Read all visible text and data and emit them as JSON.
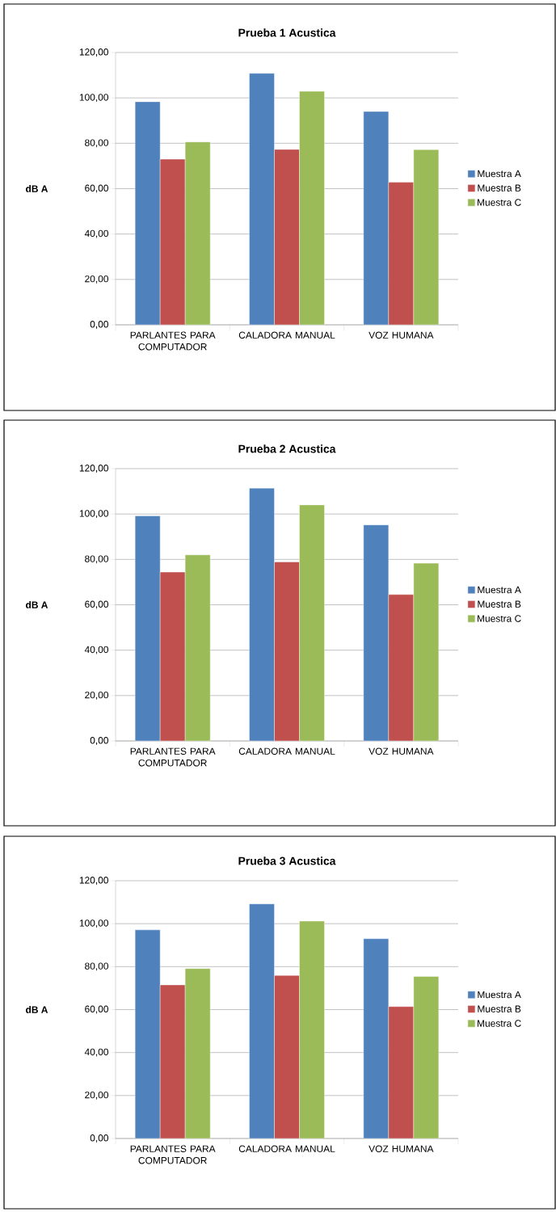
{
  "chart_data": [
    {
      "type": "bar",
      "title": "Prueba 1 Acustica",
      "ylabel": "dB A",
      "categories": [
        "PARLANTES PARA COMPUTADOR",
        "CALADORA MANUAL",
        "VOZ HUMANA"
      ],
      "series": [
        {
          "name": "Muestra A",
          "color": "#4f81bd",
          "values": [
            98.3,
            110.8,
            94.0
          ]
        },
        {
          "name": "Muestra B",
          "color": "#c0504d",
          "values": [
            73.0,
            77.3,
            62.8
          ]
        },
        {
          "name": "Muestra C",
          "color": "#9bbb59",
          "values": [
            80.6,
            102.9,
            77.2
          ]
        }
      ],
      "ylim": [
        0,
        120
      ],
      "yticks": [
        {
          "value": 0,
          "label": "0,00"
        },
        {
          "value": 20,
          "label": "20,00"
        },
        {
          "value": 40,
          "label": "40,00"
        },
        {
          "value": 60,
          "label": "60,00"
        },
        {
          "value": 80,
          "label": "80,00"
        },
        {
          "value": 100,
          "label": "100,00"
        },
        {
          "value": 120,
          "label": "120,00"
        }
      ],
      "grid": "y",
      "legend": "right"
    },
    {
      "type": "bar",
      "title": "Prueba 2 Acustica",
      "ylabel": "dB A",
      "categories": [
        "PARLANTES PARA COMPUTADOR",
        "CALADORA MANUAL",
        "VOZ HUMANA"
      ],
      "series": [
        {
          "name": "Muestra A",
          "color": "#4f81bd",
          "values": [
            99.2,
            111.4,
            95.2
          ]
        },
        {
          "name": "Muestra B",
          "color": "#c0504d",
          "values": [
            74.4,
            78.9,
            64.5
          ]
        },
        {
          "name": "Muestra C",
          "color": "#9bbb59",
          "values": [
            82.0,
            104.0,
            78.3
          ]
        }
      ],
      "ylim": [
        0,
        120
      ],
      "yticks": [
        {
          "value": 0,
          "label": "0,00"
        },
        {
          "value": 20,
          "label": "20,00"
        },
        {
          "value": 40,
          "label": "40,00"
        },
        {
          "value": 60,
          "label": "60,00"
        },
        {
          "value": 80,
          "label": "80,00"
        },
        {
          "value": 100,
          "label": "100,00"
        },
        {
          "value": 120,
          "label": "120,00"
        }
      ],
      "grid": "y",
      "legend": "right"
    },
    {
      "type": "bar",
      "title": "Prueba 3 Acustica",
      "ylabel": "dB A",
      "categories": [
        "PARLANTES PARA COMPUTADOR",
        "CALADORA MANUAL",
        "VOZ HUMANA"
      ],
      "series": [
        {
          "name": "Muestra A",
          "color": "#4f81bd",
          "values": [
            97.1,
            109.2,
            93.0
          ]
        },
        {
          "name": "Muestra B",
          "color": "#c0504d",
          "values": [
            71.5,
            75.9,
            61.4
          ]
        },
        {
          "name": "Muestra C",
          "color": "#9bbb59",
          "values": [
            79.1,
            101.2,
            75.4
          ]
        }
      ],
      "ylim": [
        0,
        120
      ],
      "yticks": [
        {
          "value": 0,
          "label": "0,00"
        },
        {
          "value": 20,
          "label": "20,00"
        },
        {
          "value": 40,
          "label": "40,00"
        },
        {
          "value": 60,
          "label": "60,00"
        },
        {
          "value": 80,
          "label": "80,00"
        },
        {
          "value": 100,
          "label": "100,00"
        },
        {
          "value": 120,
          "label": "120,00"
        }
      ],
      "grid": "y",
      "legend": "right"
    }
  ]
}
